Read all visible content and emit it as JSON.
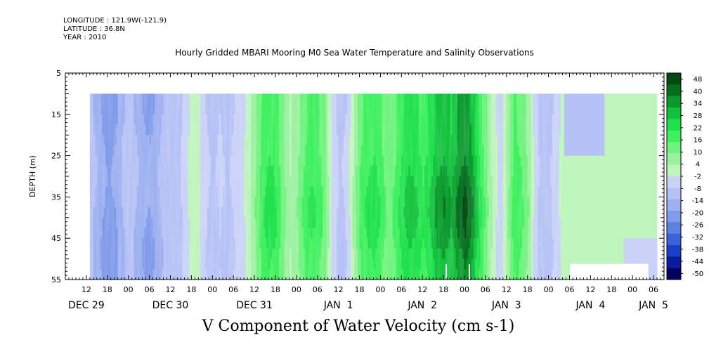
{
  "header": {
    "longitude": "LONGITUDE : 121.9W(-121.9)",
    "latitude": "LATITUDE : 36.8N",
    "year": "YEAR : 2010",
    "title": "Hourly Gridded MBARI Mooring M0 Sea Water Temperature and Salinity Observations"
  },
  "chart_data": {
    "type": "heatmap",
    "title": "Hourly Gridded MBARI Mooring M0 Sea Water Temperature and Salinity Observations",
    "xlabel": "V Component of Water Velocity (cm s-1)",
    "ylabel": "DEPTH (m)",
    "y_axis": {
      "ticks": [
        5,
        15,
        25,
        35,
        45,
        55
      ],
      "range": [
        5,
        55
      ],
      "inverted": true
    },
    "x_axis": {
      "hour_ticks": [
        {
          "hour": 12,
          "label": "12"
        },
        {
          "hour": 18,
          "label": "18"
        },
        {
          "hour": 24,
          "label": "00"
        },
        {
          "hour": 30,
          "label": "06"
        },
        {
          "hour": 36,
          "label": "12"
        },
        {
          "hour": 42,
          "label": "18"
        },
        {
          "hour": 48,
          "label": "00"
        },
        {
          "hour": 54,
          "label": "06"
        },
        {
          "hour": 60,
          "label": "12"
        },
        {
          "hour": 66,
          "label": "18"
        },
        {
          "hour": 72,
          "label": "00"
        },
        {
          "hour": 78,
          "label": "06"
        },
        {
          "hour": 84,
          "label": "12"
        },
        {
          "hour": 90,
          "label": "18"
        },
        {
          "hour": 96,
          "label": "00"
        },
        {
          "hour": 102,
          "label": "06"
        },
        {
          "hour": 108,
          "label": "12"
        },
        {
          "hour": 114,
          "label": "18"
        },
        {
          "hour": 120,
          "label": "00"
        },
        {
          "hour": 126,
          "label": "06"
        },
        {
          "hour": 132,
          "label": "12"
        },
        {
          "hour": 138,
          "label": "18"
        },
        {
          "hour": 144,
          "label": "00"
        },
        {
          "hour": 150,
          "label": "06"
        },
        {
          "hour": 156,
          "label": "12"
        },
        {
          "hour": 162,
          "label": "18"
        },
        {
          "hour": 168,
          "label": "00"
        },
        {
          "hour": 174,
          "label": "06"
        }
      ],
      "day_labels": [
        {
          "hour": 12,
          "label": "DEC 29"
        },
        {
          "hour": 36,
          "label": "DEC 30"
        },
        {
          "hour": 60,
          "label": "DEC 31"
        },
        {
          "hour": 84,
          "label": "JAN  1"
        },
        {
          "hour": 108,
          "label": "JAN  2"
        },
        {
          "hour": 132,
          "label": "JAN  3"
        },
        {
          "hour": 156,
          "label": "JAN  4"
        },
        {
          "hour": 174,
          "label": "JAN  5"
        }
      ],
      "range_hours": [
        6,
        177
      ]
    },
    "data_extent": {
      "start_hour": 13,
      "end_hour": 175,
      "depth_top": 10,
      "depth_bottom": 55
    },
    "colorbar": {
      "labels": [
        "48",
        "40",
        "34",
        "28",
        "22",
        "16",
        "10",
        "4",
        "-2",
        "-8",
        "-14",
        "-20",
        "-26",
        "-32",
        "-38",
        "-44",
        "-50"
      ],
      "range": [
        -50,
        48
      ],
      "colors_low_to_high": [
        "#02025f",
        "#0a1c9a",
        "#1a40c8",
        "#3b62d8",
        "#5d80e2",
        "#7f9bea",
        "#9db0f0",
        "#b6c2f6",
        "#cad2f8",
        "#bff5bd",
        "#9cf1a0",
        "#6ff37d",
        "#3ef05e",
        "#1ee14b",
        "#12c23c",
        "#0a9a2c",
        "#046e1d",
        "#034a12"
      ]
    },
    "profile": [
      {
        "hour": 13,
        "v": -8
      },
      {
        "hour": 14,
        "v": -12
      },
      {
        "hour": 16,
        "v": -16
      },
      {
        "hour": 18,
        "v": -20
      },
      {
        "hour": 20,
        "v": -18
      },
      {
        "hour": 22,
        "v": -12
      },
      {
        "hour": 24,
        "v": -9
      },
      {
        "hour": 26,
        "v": -12
      },
      {
        "hour": 28,
        "v": -16
      },
      {
        "hour": 30,
        "v": -18
      },
      {
        "hour": 32,
        "v": -14
      },
      {
        "hour": 34,
        "v": -10
      },
      {
        "hour": 36,
        "v": -8
      },
      {
        "hour": 38,
        "v": -9
      },
      {
        "hour": 40,
        "v": -4
      },
      {
        "hour": 42,
        "v": 2
      },
      {
        "hour": 44,
        "v": 0
      },
      {
        "hour": 46,
        "v": -6
      },
      {
        "hour": 48,
        "v": -8
      },
      {
        "hour": 50,
        "v": -6
      },
      {
        "hour": 52,
        "v": -8
      },
      {
        "hour": 54,
        "v": -6
      },
      {
        "hour": 56,
        "v": -4
      },
      {
        "hour": 58,
        "v": 2
      },
      {
        "hour": 60,
        "v": 8
      },
      {
        "hour": 62,
        "v": 16
      },
      {
        "hour": 64,
        "v": 20
      },
      {
        "hour": 66,
        "v": 18
      },
      {
        "hour": 68,
        "v": 10
      },
      {
        "hour": 70,
        "v": 4
      },
      {
        "hour": 72,
        "v": 8
      },
      {
        "hour": 74,
        "v": 14
      },
      {
        "hour": 76,
        "v": 18
      },
      {
        "hour": 78,
        "v": 16
      },
      {
        "hour": 80,
        "v": 10
      },
      {
        "hour": 82,
        "v": -2
      },
      {
        "hour": 84,
        "v": -8
      },
      {
        "hour": 86,
        "v": -6
      },
      {
        "hour": 88,
        "v": 4
      },
      {
        "hour": 90,
        "v": 14
      },
      {
        "hour": 92,
        "v": 18
      },
      {
        "hour": 94,
        "v": 20
      },
      {
        "hour": 96,
        "v": 16
      },
      {
        "hour": 98,
        "v": 10
      },
      {
        "hour": 100,
        "v": 14
      },
      {
        "hour": 102,
        "v": 20
      },
      {
        "hour": 104,
        "v": 24
      },
      {
        "hour": 106,
        "v": 22
      },
      {
        "hour": 108,
        "v": 18
      },
      {
        "hour": 110,
        "v": 22
      },
      {
        "hour": 112,
        "v": 28
      },
      {
        "hour": 114,
        "v": 30
      },
      {
        "hour": 116,
        "v": 26
      },
      {
        "hour": 118,
        "v": 32
      },
      {
        "hour": 120,
        "v": 36
      },
      {
        "hour": 122,
        "v": 30
      },
      {
        "hour": 124,
        "v": 20
      },
      {
        "hour": 126,
        "v": 10
      },
      {
        "hour": 128,
        "v": 2
      },
      {
        "hour": 130,
        "v": -4
      },
      {
        "hour": 132,
        "v": 6
      },
      {
        "hour": 134,
        "v": 16
      },
      {
        "hour": 136,
        "v": 14
      },
      {
        "hour": 138,
        "v": 8
      },
      {
        "hour": 140,
        "v": -4
      },
      {
        "hour": 142,
        "v": -10
      },
      {
        "hour": 144,
        "v": -8
      },
      {
        "hour": 146,
        "v": -4
      },
      {
        "hour": 148,
        "v": 2
      },
      {
        "hour": 152,
        "v": 4
      },
      {
        "hour": 158,
        "v": 4
      },
      {
        "hour": 164,
        "v": 2
      },
      {
        "hour": 170,
        "v": 4
      },
      {
        "hour": 175,
        "v": 6
      }
    ]
  }
}
